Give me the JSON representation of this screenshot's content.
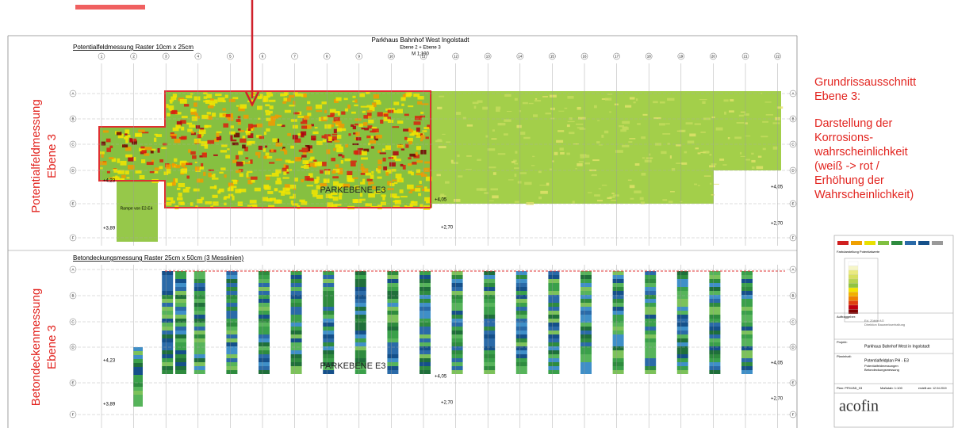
{
  "plan": {
    "title": "Parkhaus Bahnhof West Ingolstadt",
    "subtitle": "Ebene 2 + Ebene 3",
    "scale": "M 1:100"
  },
  "top_section": {
    "title": "Potentialfeldmessung Raster 10cm x 25cm",
    "label": "PARKEBENE E3",
    "ramp": "Rampe von E2-E4",
    "side_label": [
      "Potentialfeldmessung",
      "Ebene 3"
    ],
    "elevations": [
      "+4,23",
      "+3,89",
      "+4,05",
      "+2,70",
      "+4,05",
      "+2,70"
    ]
  },
  "bottom_section": {
    "title": "Betondeckungsmessung Raster 25cm x 50cm (3 Messlinien)",
    "label": "PARKEBENE E3",
    "side_label": [
      "Betondeckenmessung",
      "Ebene 3"
    ],
    "elevations": [
      "+4,23",
      "+3,89",
      "+4,05",
      "+2,70",
      "+4,05",
      "+2,70"
    ]
  },
  "columns": [
    "1",
    "2",
    "3",
    "4",
    "5",
    "6",
    "7",
    "8",
    "9",
    "10",
    "11",
    "12",
    "13",
    "14",
    "15",
    "16",
    "17",
    "18",
    "19",
    "20",
    "21",
    "22"
  ],
  "rows": [
    "A",
    "B",
    "C",
    "D",
    "E",
    "F"
  ],
  "annotation": {
    "lines": [
      "Grundrissausschnitt",
      "Ebene 3:",
      "Darstellung der",
      "Korrosions-",
      "wahrscheinlichkeit",
      "(weiß -> rot /",
      "Erhöhung der",
      "Wahrscheinlichkeit)"
    ]
  },
  "title_block": {
    "legend_heading": "Farbdarstellung Potentialwerte",
    "client_label": "Auftraggeber:",
    "client": [
      "Ed. Züblin AG",
      "Direktion Bauwerkserhaltung"
    ],
    "project_label": "Projekt:",
    "project": "Parkhaus Bahnhof West in Ingolstadt",
    "content_label": "Planinhalt:",
    "content": [
      "Potentialfeldplan PH - E3",
      "Potentialfeldmessungen",
      "Betondeckungsmessung"
    ],
    "plan_no": "Plan: PFM-BD_03",
    "plan_scale": "Maßstab: 1:100",
    "date": "erstellt am: 12.04.2019",
    "logo": "acofin"
  }
}
